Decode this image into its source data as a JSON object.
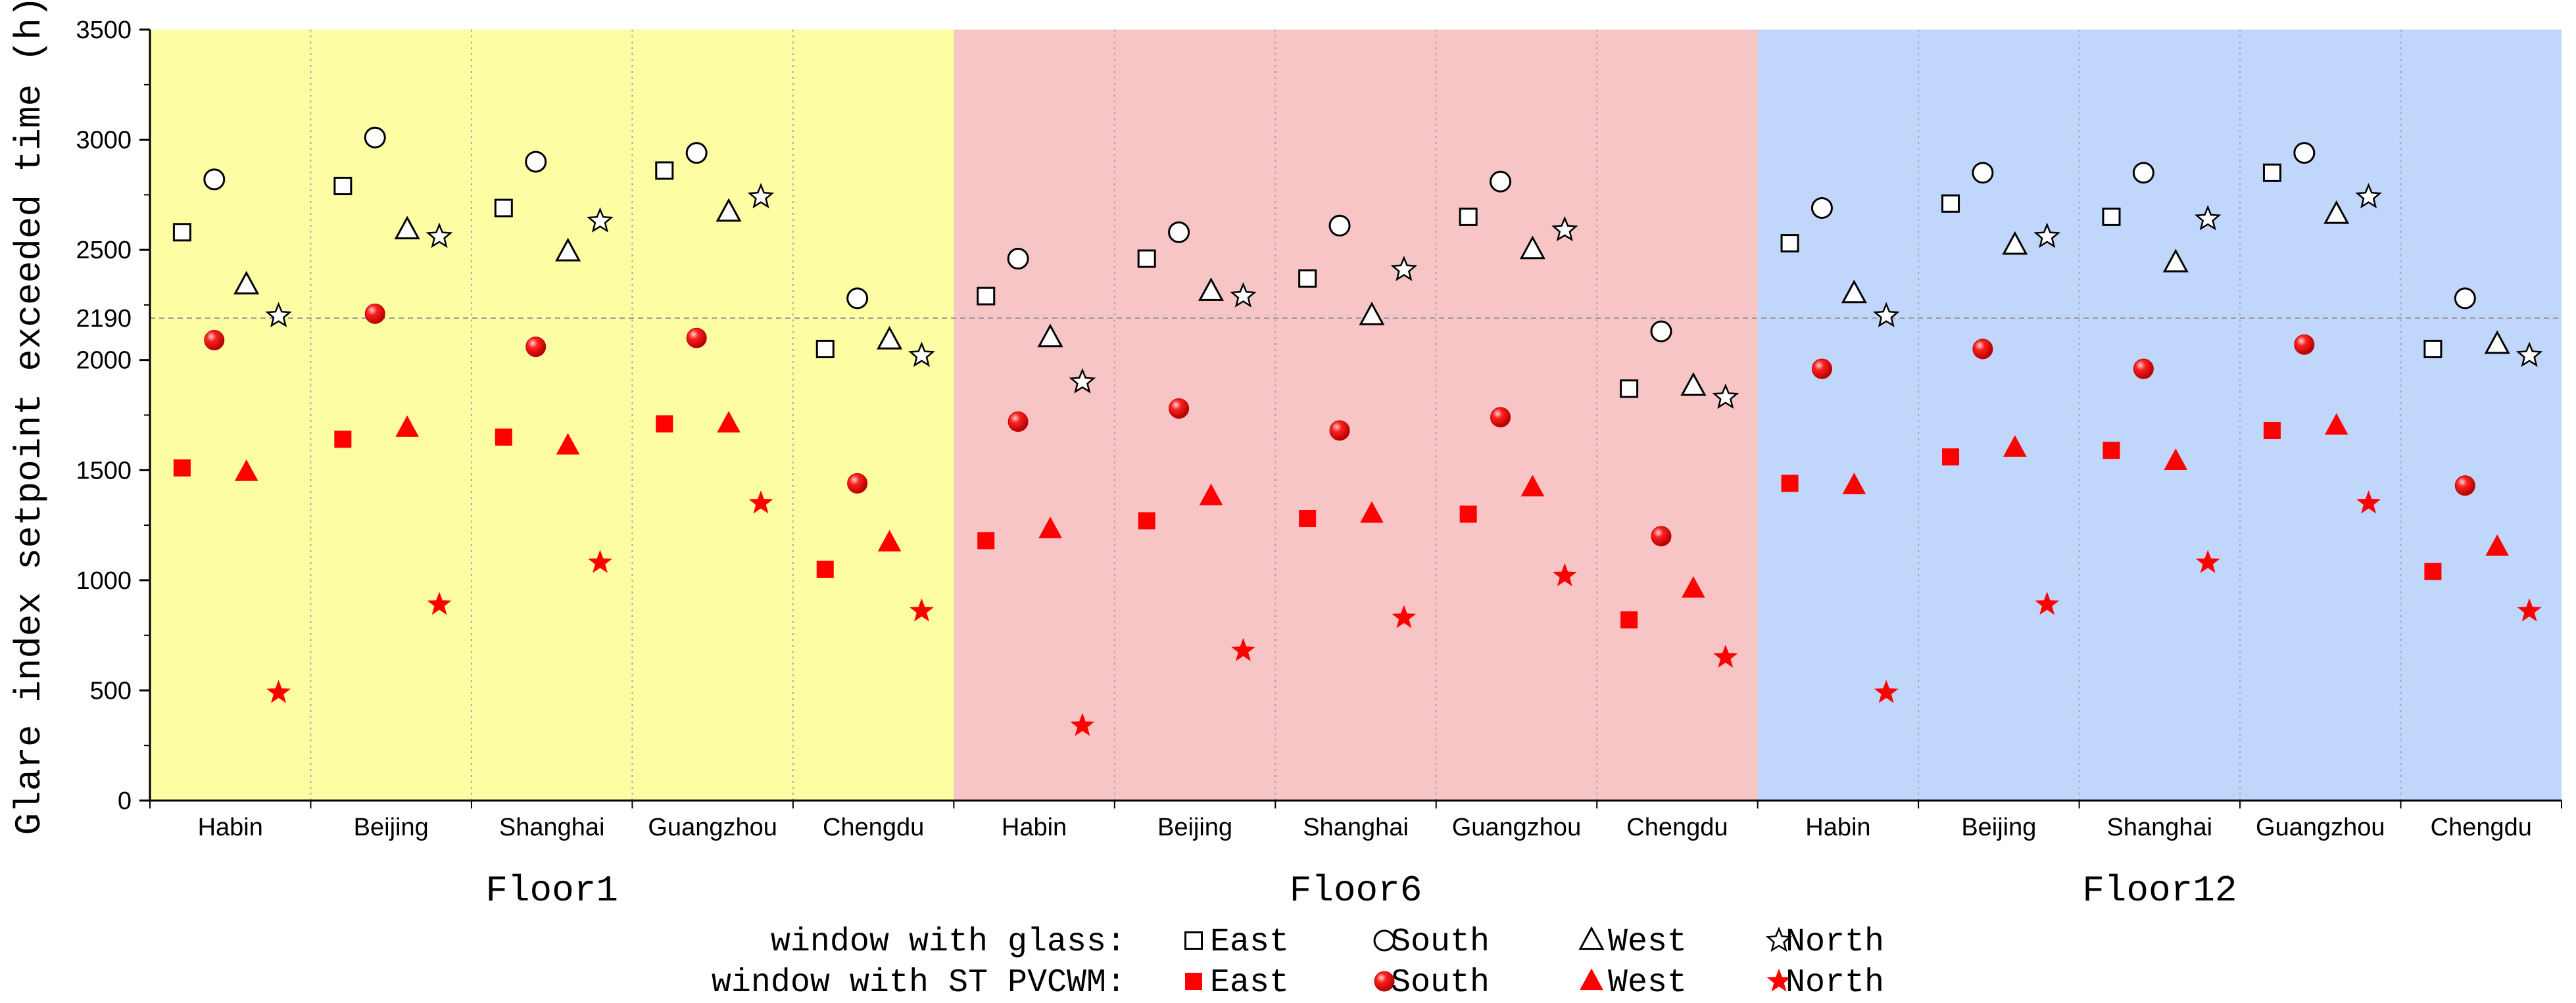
{
  "chart_data": {
    "type": "scatter",
    "ylabel": "Glare index setpoint exceeded time (h)",
    "ylim": [
      0,
      3500
    ],
    "yticks": [
      0,
      500,
      1000,
      1500,
      2000,
      2500,
      3000,
      3500
    ],
    "reference_line": {
      "value": 2190,
      "label": "2190"
    },
    "categories": [
      "Habin",
      "Beijing",
      "Shanghai",
      "Guangzhou",
      "Chengdu"
    ],
    "groups": [
      {
        "name": "Floor1",
        "color": "#fdfda3"
      },
      {
        "name": "Floor6",
        "color": "#f7c5c5"
      },
      {
        "name": "Floor12",
        "color": "#c0d6fb"
      }
    ],
    "orientations": [
      "East",
      "South",
      "West",
      "North"
    ],
    "series": [
      {
        "name": "window with glass",
        "style": "hollow",
        "color": "#000000",
        "values": {
          "Floor1": {
            "Habin": {
              "East": 2580,
              "South": 2820,
              "West": 2340,
              "North": 2200
            },
            "Beijing": {
              "East": 2790,
              "South": 3010,
              "West": 2590,
              "North": 2560
            },
            "Shanghai": {
              "East": 2690,
              "South": 2900,
              "West": 2490,
              "North": 2630
            },
            "Guangzhou": {
              "East": 2860,
              "South": 2940,
              "West": 2670,
              "North": 2740
            },
            "Chengdu": {
              "East": 2050,
              "South": 2280,
              "West": 2090,
              "North": 2020
            }
          },
          "Floor6": {
            "Habin": {
              "East": 2290,
              "South": 2460,
              "West": 2100,
              "North": 1900
            },
            "Beijing": {
              "East": 2460,
              "South": 2580,
              "West": 2310,
              "North": 2290
            },
            "Shanghai": {
              "East": 2370,
              "South": 2610,
              "West": 2200,
              "North": 2410
            },
            "Guangzhou": {
              "East": 2650,
              "South": 2810,
              "West": 2500,
              "North": 2590
            },
            "Chengdu": {
              "East": 1870,
              "South": 2130,
              "West": 1880,
              "North": 1830
            }
          },
          "Floor12": {
            "Habin": {
              "East": 2530,
              "South": 2690,
              "West": 2300,
              "North": 2200
            },
            "Beijing": {
              "East": 2710,
              "South": 2850,
              "West": 2520,
              "North": 2560
            },
            "Shanghai": {
              "East": 2650,
              "South": 2850,
              "West": 2440,
              "North": 2640
            },
            "Guangzhou": {
              "East": 2850,
              "South": 2940,
              "West": 2660,
              "North": 2740
            },
            "Chengdu": {
              "East": 2050,
              "South": 2280,
              "West": 2070,
              "North": 2020
            }
          }
        }
      },
      {
        "name": "window with ST PVCWM",
        "style": "filled",
        "color": "#ff0000",
        "values": {
          "Floor1": {
            "Habin": {
              "East": 1510,
              "South": 2090,
              "West": 1490,
              "North": 490
            },
            "Beijing": {
              "East": 1640,
              "South": 2210,
              "West": 1690,
              "North": 890
            },
            "Shanghai": {
              "East": 1650,
              "South": 2060,
              "West": 1610,
              "North": 1080
            },
            "Guangzhou": {
              "East": 1710,
              "South": 2100,
              "West": 1710,
              "North": 1350
            },
            "Chengdu": {
              "East": 1050,
              "South": 1440,
              "West": 1170,
              "North": 860
            }
          },
          "Floor6": {
            "Habin": {
              "East": 1180,
              "South": 1720,
              "West": 1230,
              "North": 340
            },
            "Beijing": {
              "East": 1270,
              "South": 1780,
              "West": 1380,
              "North": 680
            },
            "Shanghai": {
              "East": 1280,
              "South": 1680,
              "West": 1300,
              "North": 830
            },
            "Guangzhou": {
              "East": 1300,
              "South": 1740,
              "West": 1420,
              "North": 1020
            },
            "Chengdu": {
              "East": 820,
              "South": 1200,
              "West": 960,
              "North": 650
            }
          },
          "Floor12": {
            "Habin": {
              "East": 1440,
              "South": 1960,
              "West": 1430,
              "North": 490
            },
            "Beijing": {
              "East": 1560,
              "South": 2050,
              "West": 1600,
              "North": 890
            },
            "Shanghai": {
              "East": 1590,
              "South": 1960,
              "West": 1540,
              "North": 1080
            },
            "Guangzhou": {
              "East": 1680,
              "South": 2070,
              "West": 1700,
              "North": 1350
            },
            "Chengdu": {
              "East": 1040,
              "South": 1430,
              "West": 1150,
              "North": 860
            }
          }
        }
      }
    ],
    "legend": {
      "placement": "bottom-center",
      "rows": [
        {
          "label": "window with glass:",
          "items": [
            "East",
            "South",
            "West",
            "North"
          ]
        },
        {
          "label": "window with ST PVCWM:",
          "items": [
            "East",
            "South",
            "West",
            "North"
          ]
        }
      ]
    }
  }
}
